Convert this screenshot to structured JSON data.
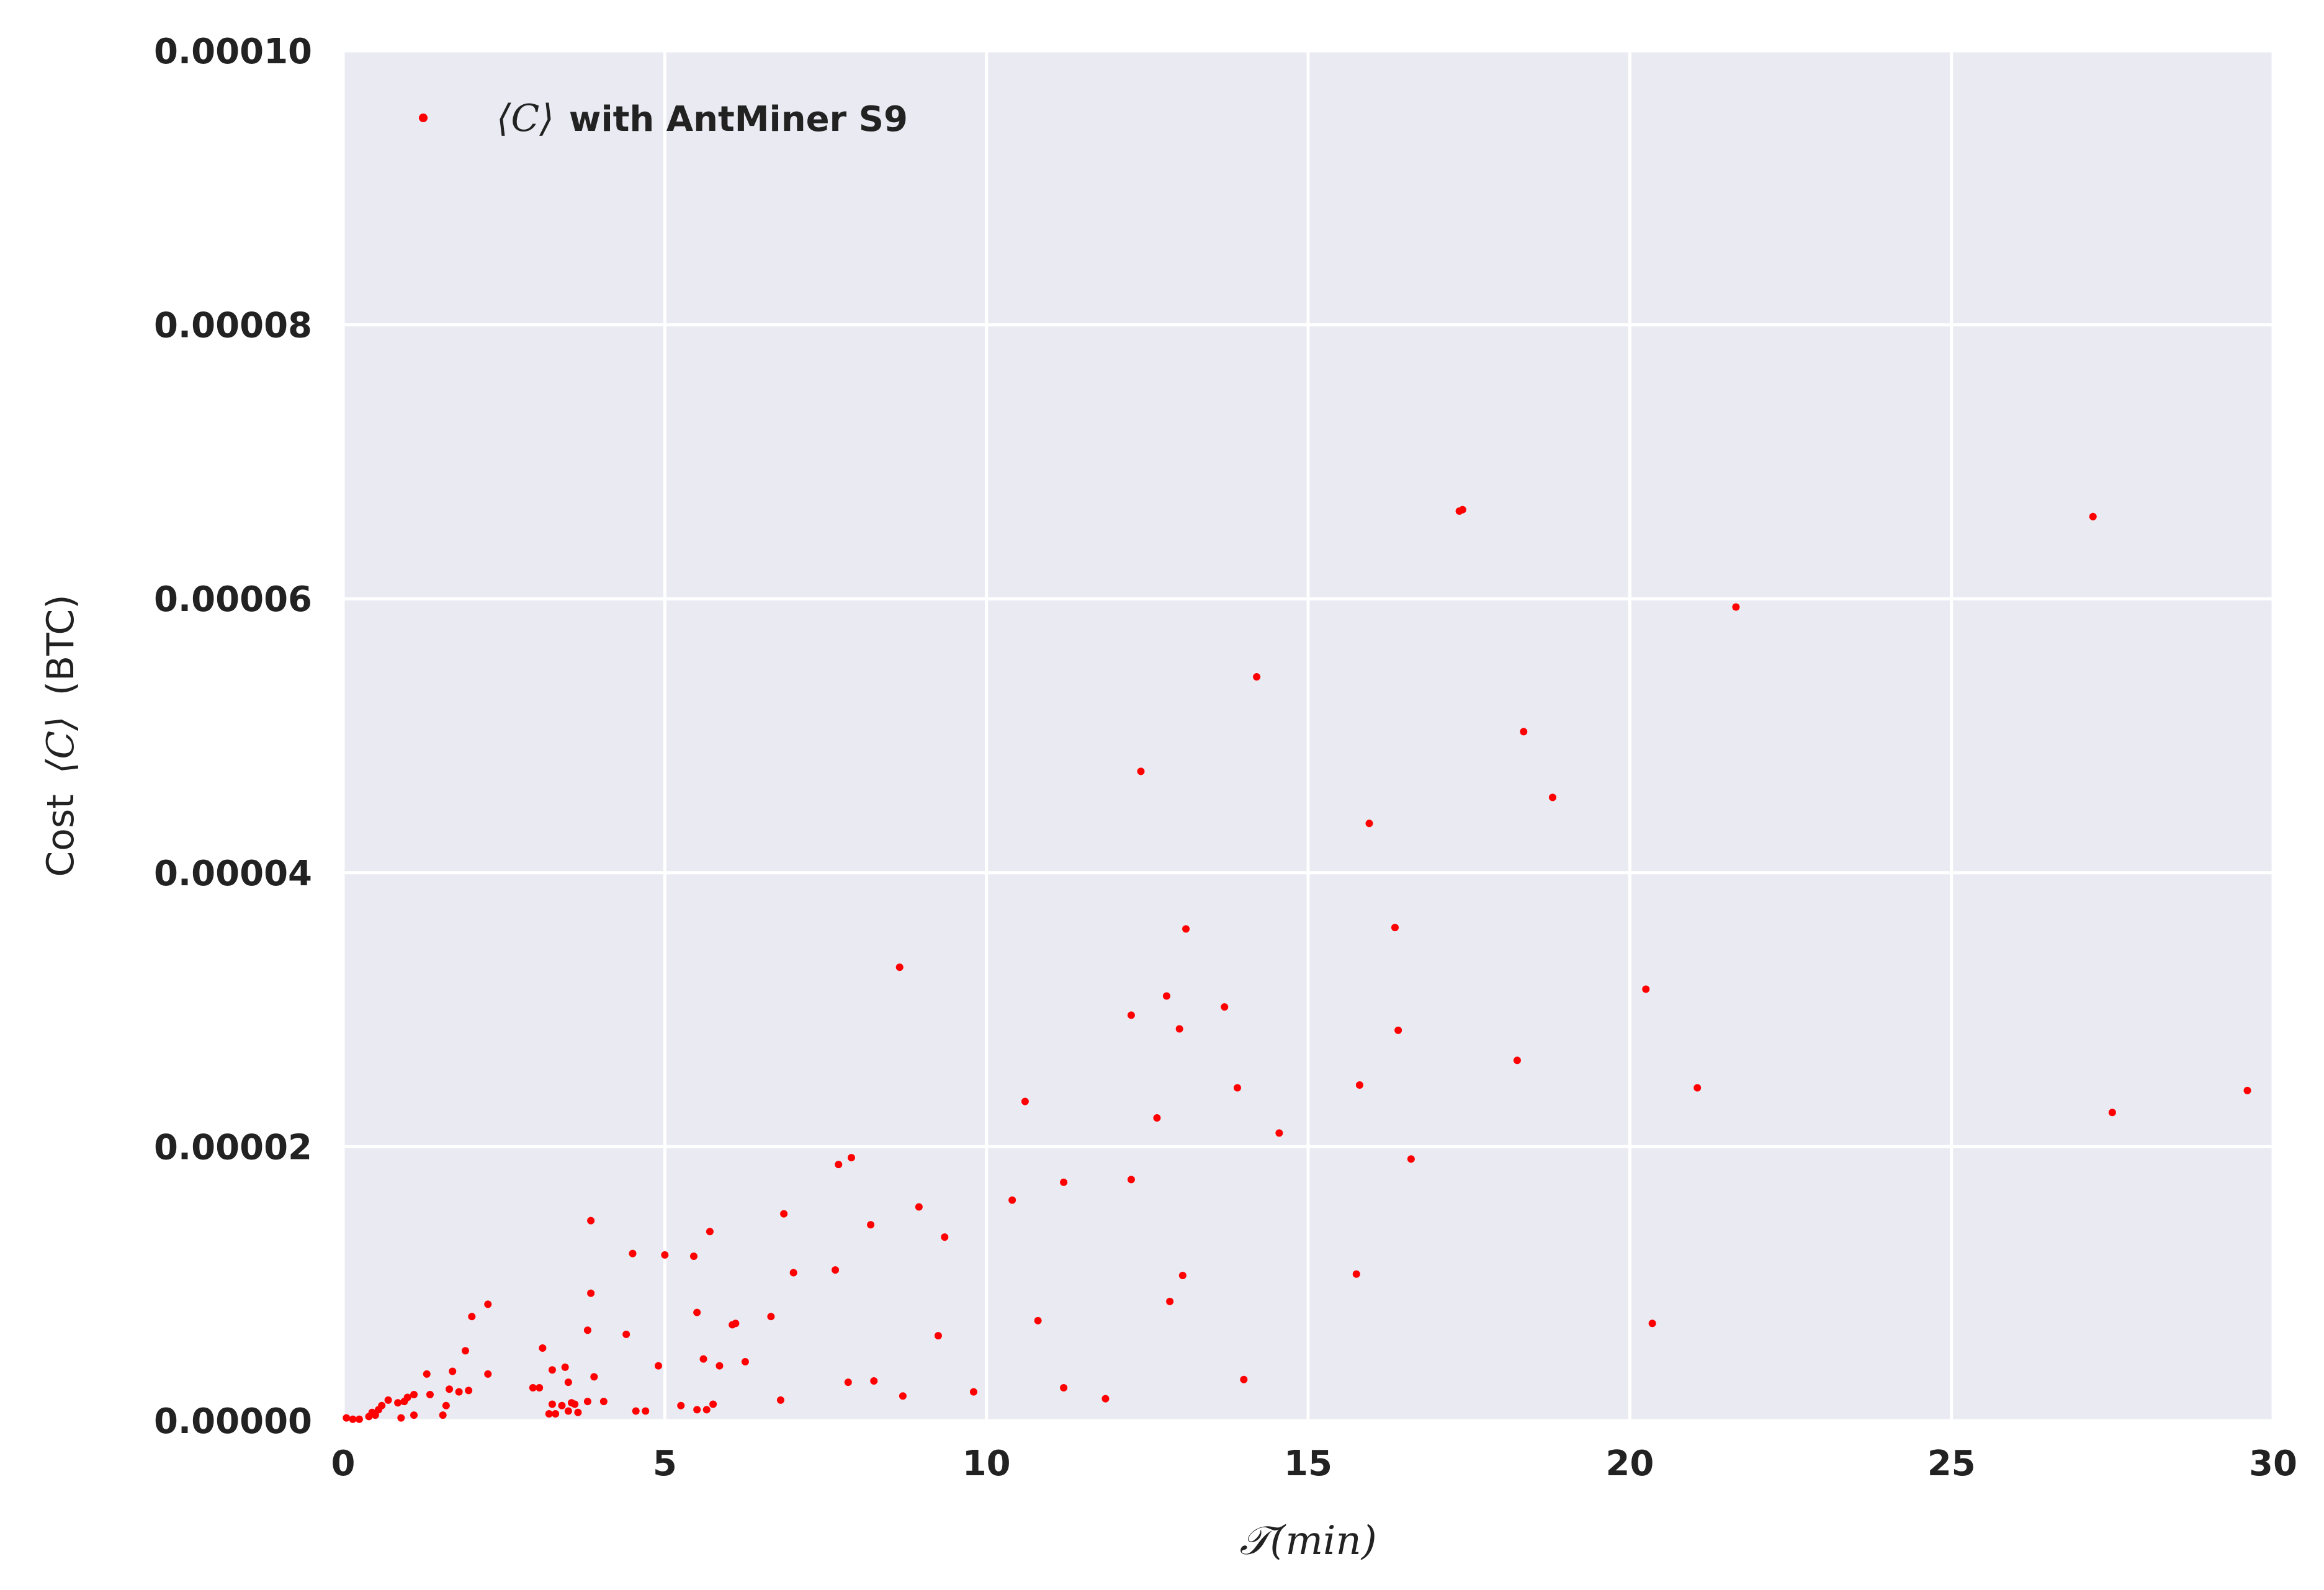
{
  "chart_data": {
    "type": "scatter",
    "title": "",
    "xlabel": "𝒯(min)",
    "ylabel_prefix": "Cost",
    "ylabel_math": "⟨C⟩",
    "ylabel_suffix": "(BTC)",
    "xlim": [
      0,
      30
    ],
    "ylim": [
      0,
      0.0001
    ],
    "x_ticks": [
      0,
      5,
      10,
      15,
      20,
      25,
      30
    ],
    "x_tick_labels": [
      "0",
      "5",
      "10",
      "15",
      "20",
      "25",
      "30"
    ],
    "y_ticks": [
      0,
      2e-05,
      4e-05,
      6e-05,
      8e-05,
      0.0001
    ],
    "y_tick_labels": [
      "0.00000",
      "0.00002",
      "0.00004",
      "0.00006",
      "0.00008",
      "0.00010"
    ],
    "grid": true,
    "background": "#eaeaf2",
    "grid_color": "#ffffff",
    "marker_color": "#ff0000",
    "legend": {
      "placement": "top-left",
      "math_label": "⟨C⟩",
      "text_label": "with AntMiner S9"
    },
    "series": [
      {
        "name": "⟨C⟩ with AntMiner S9",
        "points": [
          [
            0.05,
            2e-07
          ],
          [
            0.15,
            1e-07
          ],
          [
            0.25,
            1e-07
          ],
          [
            0.4,
            3e-07
          ],
          [
            0.45,
            6e-07
          ],
          [
            0.5,
            4e-07
          ],
          [
            0.55,
            8e-07
          ],
          [
            0.6,
            1.1e-06
          ],
          [
            0.7,
            1.5e-06
          ],
          [
            0.85,
            1.3e-06
          ],
          [
            0.9,
            2e-07
          ],
          [
            0.95,
            1.4e-06
          ],
          [
            1.0,
            1.7e-06
          ],
          [
            1.1,
            4e-07
          ],
          [
            1.1,
            1.9e-06
          ],
          [
            1.3,
            3.4e-06
          ],
          [
            1.35,
            1.9e-06
          ],
          [
            1.55,
            4e-07
          ],
          [
            1.6,
            1.1e-06
          ],
          [
            1.65,
            2.3e-06
          ],
          [
            1.7,
            3.6e-06
          ],
          [
            1.8,
            2.1e-06
          ],
          [
            1.9,
            5.1e-06
          ],
          [
            1.95,
            2.2e-06
          ],
          [
            2.0,
            7.6e-06
          ],
          [
            2.25,
            3.4e-06
          ],
          [
            2.25,
            8.5e-06
          ],
          [
            2.95,
            2.4e-06
          ],
          [
            3.05,
            2.4e-06
          ],
          [
            3.1,
            5.3e-06
          ],
          [
            3.2,
            5e-07
          ],
          [
            3.25,
            1.2e-06
          ],
          [
            3.25,
            3.7e-06
          ],
          [
            3.3,
            5e-07
          ],
          [
            3.4,
            1.1e-06
          ],
          [
            3.45,
            3.9e-06
          ],
          [
            3.5,
            2.8e-06
          ],
          [
            3.5,
            7e-07
          ],
          [
            3.55,
            1.3e-06
          ],
          [
            3.6,
            1.2e-06
          ],
          [
            3.65,
            6e-07
          ],
          [
            3.8,
            1.4e-06
          ],
          [
            3.8,
            6.6e-06
          ],
          [
            3.85,
            9.3e-06
          ],
          [
            3.85,
            1.46e-05
          ],
          [
            3.9,
            3.2e-06
          ],
          [
            4.05,
            1.4e-06
          ],
          [
            4.4,
            6.3e-06
          ],
          [
            4.5,
            1.22e-05
          ],
          [
            4.55,
            7e-07
          ],
          [
            4.7,
            7e-07
          ],
          [
            4.9,
            4e-06
          ],
          [
            5.0,
            1.21e-05
          ],
          [
            5.25,
            1.1e-06
          ],
          [
            5.45,
            1.2e-05
          ],
          [
            5.5,
            7.9e-06
          ],
          [
            5.5,
            8e-07
          ],
          [
            5.6,
            4.5e-06
          ],
          [
            5.65,
            8e-07
          ],
          [
            5.7,
            1.38e-05
          ],
          [
            5.75,
            1.2e-06
          ],
          [
            5.85,
            4e-06
          ],
          [
            6.05,
            7e-06
          ],
          [
            6.1,
            7.1e-06
          ],
          [
            6.25,
            4.3e-06
          ],
          [
            6.65,
            7.6e-06
          ],
          [
            6.8,
            1.5e-06
          ],
          [
            6.85,
            1.51e-05
          ],
          [
            7.0,
            1.08e-05
          ],
          [
            7.65,
            1.1e-05
          ],
          [
            7.7,
            1.87e-05
          ],
          [
            7.85,
            2.8e-06
          ],
          [
            7.9,
            1.92e-05
          ],
          [
            8.2,
            1.43e-05
          ],
          [
            8.25,
            2.9e-06
          ],
          [
            8.65,
            3.31e-05
          ],
          [
            8.7,
            1.8e-06
          ],
          [
            8.95,
            1.56e-05
          ],
          [
            9.25,
            6.2e-06
          ],
          [
            9.35,
            1.34e-05
          ],
          [
            9.8,
            2.1e-06
          ],
          [
            10.4,
            1.61e-05
          ],
          [
            10.6,
            2.33e-05
          ],
          [
            10.8,
            7.3e-06
          ],
          [
            11.2,
            1.74e-05
          ],
          [
            11.2,
            2.4e-06
          ],
          [
            11.85,
            1.6e-06
          ],
          [
            12.25,
            2.96e-05
          ],
          [
            12.25,
            1.76e-05
          ],
          [
            12.4,
            4.74e-05
          ],
          [
            12.65,
            2.21e-05
          ],
          [
            12.8,
            3.1e-05
          ],
          [
            12.85,
            8.7e-06
          ],
          [
            13.0,
            2.86e-05
          ],
          [
            13.05,
            1.06e-05
          ],
          [
            13.1,
            3.59e-05
          ],
          [
            13.7,
            3.02e-05
          ],
          [
            13.9,
            2.43e-05
          ],
          [
            14.0,
            3e-06
          ],
          [
            14.2,
            5.43e-05
          ],
          [
            14.55,
            2.1e-05
          ],
          [
            15.75,
            1.07e-05
          ],
          [
            15.8,
            2.45e-05
          ],
          [
            15.95,
            4.36e-05
          ],
          [
            16.35,
            3.6e-05
          ],
          [
            16.4,
            2.85e-05
          ],
          [
            16.6,
            1.91e-05
          ],
          [
            17.35,
            6.64e-05
          ],
          [
            17.4,
            6.65e-05
          ],
          [
            18.25,
            2.63e-05
          ],
          [
            18.35,
            5.03e-05
          ],
          [
            18.8,
            4.55e-05
          ],
          [
            20.25,
            3.15e-05
          ],
          [
            20.35,
            7.1e-06
          ],
          [
            21.05,
            2.43e-05
          ],
          [
            21.65,
            5.94e-05
          ],
          [
            27.2,
            6.6e-05
          ],
          [
            27.5,
            2.25e-05
          ],
          [
            29.6,
            2.41e-05
          ]
        ]
      }
    ]
  }
}
